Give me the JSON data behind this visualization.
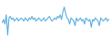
{
  "values": [
    0,
    2,
    -1,
    5,
    -8,
    3,
    4,
    2,
    3,
    1,
    2,
    3,
    1,
    2,
    3,
    2,
    1,
    3,
    2,
    1,
    3,
    2,
    4,
    2,
    3,
    1,
    2,
    3,
    2,
    1,
    2,
    3,
    1,
    2,
    3,
    4,
    2,
    1,
    2,
    3,
    2,
    4,
    3,
    5,
    2,
    7,
    10,
    6,
    3,
    2,
    -1,
    3,
    2,
    1,
    -2,
    3,
    1,
    2,
    3,
    1,
    2,
    -1,
    3,
    2,
    1,
    2,
    -3,
    2,
    1,
    3,
    2,
    1,
    -2,
    3,
    2,
    1,
    2,
    3,
    1,
    2
  ],
  "line_color": "#5baee0",
  "bg_color": "#ffffff",
  "linewidth": 0.8
}
